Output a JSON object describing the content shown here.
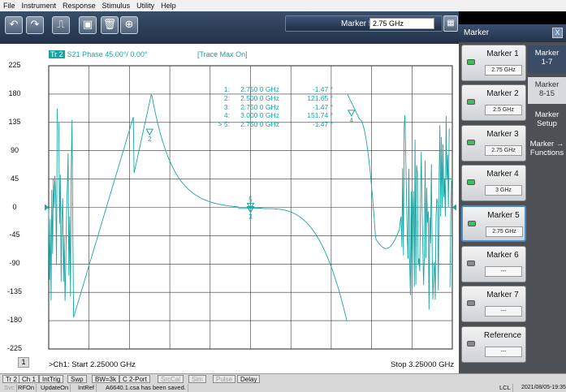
{
  "menu": [
    "File",
    "Instrument",
    "Response",
    "Stimulus",
    "Utility",
    "Help"
  ],
  "toolbar": {
    "buttons": [
      {
        "name": "undo-icon",
        "glyph": "↶"
      },
      {
        "name": "redo-icon",
        "glyph": "↷"
      },
      {
        "name": "marker-search-icon",
        "glyph": "⎍"
      },
      {
        "name": "autoscale-icon",
        "glyph": "▣"
      },
      {
        "name": "trash-icon",
        "glyph": "🗑"
      },
      {
        "name": "zoom-icon",
        "glyph": "⊕"
      }
    ],
    "marker_label": "Marker 5",
    "marker_value": "2.75 GHz",
    "keypad_icon": "▦"
  },
  "trace": {
    "tag": "Tr 2",
    "title": "S21 Phase 45.00°/ 0.00°",
    "trace_max": "[Trace Max On]"
  },
  "marker_table": [
    {
      "id": "1:",
      "freq": "2.750 0 GHz",
      "val": "-1.47 °"
    },
    {
      "id": "2:",
      "freq": "2.500 0 GHz",
      "val": "121.65 °"
    },
    {
      "id": "3:",
      "freq": "2.750 0 GHz",
      "val": "-1.47 °"
    },
    {
      "id": "4:",
      "freq": "3.000 0 GHz",
      "val": "151.74 °"
    },
    {
      "id": "> 5:",
      "freq": "2.750 0 GHz",
      "val": "-1.47 °"
    }
  ],
  "yticks": [
    "225",
    "180",
    "135",
    "90",
    "45",
    "0",
    "-45",
    "-90",
    "-135",
    "-180",
    "-225"
  ],
  "channel_num": "1",
  "start_label": ">Ch1: Start  2.25000 GHz",
  "stop_label": "Stop 3.25000 GHz",
  "chart_data": {
    "type": "line",
    "title": "S21 Phase 45.00°/ 0.00°",
    "xlabel": "",
    "ylabel": "",
    "xlim": [
      2.25,
      3.25
    ],
    "ylim": [
      -225,
      225
    ],
    "x_unit": "GHz",
    "y_unit": "°",
    "grid": true,
    "series_color": "#1aa5a5",
    "markers": [
      {
        "id": "1",
        "x": 2.75,
        "y": -1.47
      },
      {
        "id": "2",
        "x": 2.5,
        "y": 121.65
      },
      {
        "id": "3",
        "x": 2.75,
        "y": -1.47
      },
      {
        "id": "4",
        "x": 3.0,
        "y": 151.74
      },
      {
        "id": "5",
        "x": 2.75,
        "y": -1.47
      }
    ]
  },
  "right_panel": {
    "title": "Marker",
    "close": "X",
    "markers": [
      {
        "name": "Marker 1",
        "value": "2.75 GHz",
        "on": true
      },
      {
        "name": "Marker 2",
        "value": "2.5 GHz",
        "on": true
      },
      {
        "name": "Marker 3",
        "value": "2.75 GHz",
        "on": true
      },
      {
        "name": "Marker 4",
        "value": "3 GHz",
        "on": true
      },
      {
        "name": "Marker 5",
        "value": "2.75 GHz",
        "on": true
      },
      {
        "name": "Marker 6",
        "value": "---",
        "on": false
      },
      {
        "name": "Marker 7",
        "value": "---",
        "on": false
      },
      {
        "name": "Reference",
        "value": "---",
        "on": false
      }
    ],
    "tabs": [
      {
        "label": "Marker\n1-7"
      },
      {
        "label": "Marker\n8-15"
      },
      {
        "label": "Marker\nSetup"
      },
      {
        "label": "Marker →\nFunctions"
      }
    ]
  },
  "status": {
    "row1": [
      {
        "t": "Tr 2",
        "dim": false
      },
      {
        "t": "Ch 1",
        "dim": false
      },
      {
        "t": "IntTrig",
        "dim": false
      },
      {
        "t": "Swp",
        "dim": false
      },
      {
        "t": "BW=3k",
        "dim": false
      },
      {
        "t": "C  2-Port",
        "dim": false
      },
      {
        "t": "SrcCal",
        "dim": true
      },
      {
        "t": "Sim",
        "dim": true
      },
      {
        "t": "Pulse",
        "dim": true
      },
      {
        "t": "Delay",
        "dim": false
      }
    ],
    "row2": [
      "Svc",
      "RFOn",
      "UpdateOn",
      "IntRef",
      "A6640.1.csa has been saved."
    ],
    "lcl": "LCL",
    "datetime": "2021/08/05-19:35"
  }
}
